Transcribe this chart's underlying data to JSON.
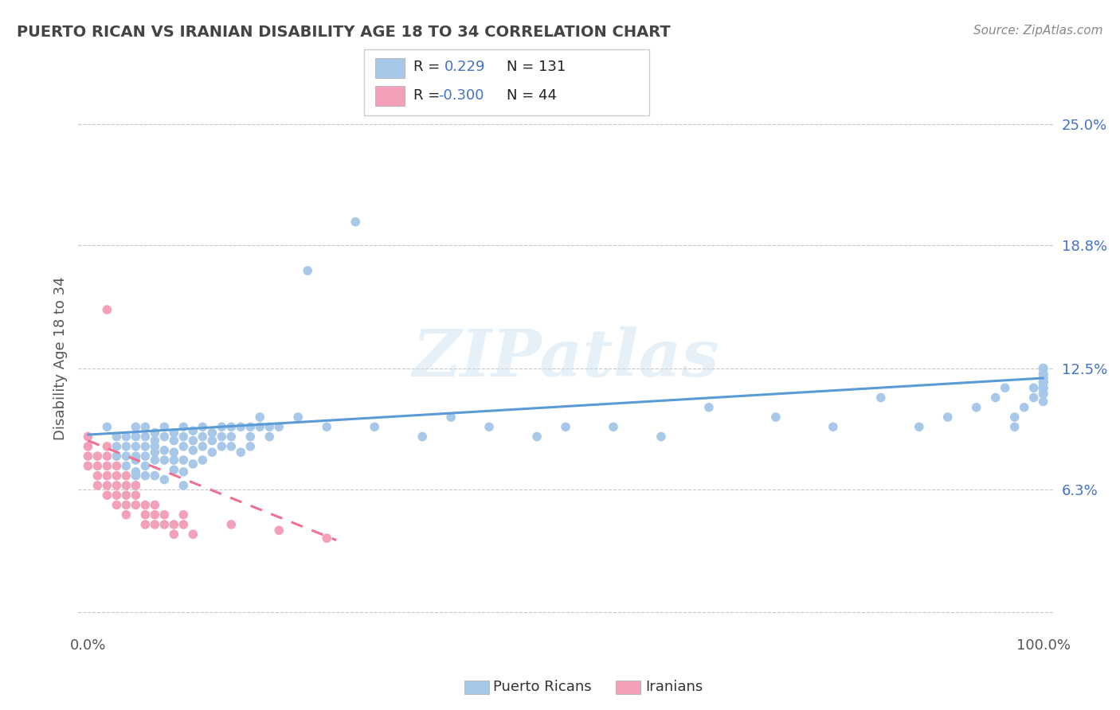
{
  "title": "PUERTO RICAN VS IRANIAN DISABILITY AGE 18 TO 34 CORRELATION CHART",
  "source": "Source: ZipAtlas.com",
  "ylabel": "Disability Age 18 to 34",
  "xlim": [
    -0.01,
    1.01
  ],
  "ylim": [
    -0.01,
    0.27
  ],
  "ytick_vals": [
    0.0,
    0.063,
    0.125,
    0.188,
    0.25
  ],
  "ytick_labels": [
    "",
    "6.3%",
    "12.5%",
    "18.8%",
    "25.0%"
  ],
  "xtick_vals": [
    0.0,
    1.0
  ],
  "xtick_labels": [
    "0.0%",
    "100.0%"
  ],
  "blue_color": "#a8c8ea",
  "pink_color": "#f4a0b8",
  "blue_line_color": "#5b9bd5",
  "pink_line_color": "#f07090",
  "r_text_color": "#4472c4",
  "watermark": "ZIPatlas",
  "blue_trend_x": [
    0.0,
    1.0
  ],
  "blue_trend_y": [
    0.091,
    0.12
  ],
  "pink_trend_x": [
    0.0,
    0.26
  ],
  "pink_trend_y": [
    0.088,
    0.037
  ],
  "blue_x": [
    0.02,
    0.03,
    0.03,
    0.03,
    0.04,
    0.04,
    0.04,
    0.04,
    0.05,
    0.05,
    0.05,
    0.05,
    0.05,
    0.05,
    0.05,
    0.05,
    0.06,
    0.06,
    0.06,
    0.06,
    0.06,
    0.06,
    0.07,
    0.07,
    0.07,
    0.07,
    0.07,
    0.07,
    0.08,
    0.08,
    0.08,
    0.08,
    0.08,
    0.09,
    0.09,
    0.09,
    0.09,
    0.09,
    0.1,
    0.1,
    0.1,
    0.1,
    0.1,
    0.1,
    0.11,
    0.11,
    0.11,
    0.11,
    0.12,
    0.12,
    0.12,
    0.12,
    0.13,
    0.13,
    0.13,
    0.14,
    0.14,
    0.14,
    0.15,
    0.15,
    0.15,
    0.16,
    0.16,
    0.17,
    0.17,
    0.17,
    0.18,
    0.18,
    0.19,
    0.19,
    0.2,
    0.22,
    0.23,
    0.25,
    0.28,
    0.3,
    0.35,
    0.38,
    0.42,
    0.47,
    0.5,
    0.55,
    0.6,
    0.65,
    0.72,
    0.78,
    0.83,
    0.87,
    0.9,
    0.93,
    0.95,
    0.96,
    0.97,
    0.97,
    0.98,
    0.99,
    0.99,
    1.0,
    1.0,
    1.0,
    1.0,
    1.0,
    1.0,
    1.0,
    1.0,
    1.0,
    1.0,
    1.0,
    1.0,
    1.0,
    1.0,
    1.0,
    1.0,
    1.0,
    1.0,
    1.0,
    1.0,
    1.0,
    1.0,
    1.0,
    1.0,
    1.0,
    1.0,
    1.0,
    1.0,
    1.0,
    1.0,
    1.0,
    1.0,
    1.0,
    1.0
  ],
  "blue_y": [
    0.095,
    0.09,
    0.085,
    0.08,
    0.085,
    0.08,
    0.075,
    0.09,
    0.078,
    0.072,
    0.085,
    0.09,
    0.08,
    0.095,
    0.07,
    0.065,
    0.085,
    0.08,
    0.09,
    0.095,
    0.075,
    0.07,
    0.082,
    0.088,
    0.078,
    0.092,
    0.085,
    0.07,
    0.083,
    0.078,
    0.09,
    0.095,
    0.068,
    0.088,
    0.082,
    0.092,
    0.078,
    0.073,
    0.085,
    0.09,
    0.095,
    0.078,
    0.072,
    0.065,
    0.088,
    0.083,
    0.093,
    0.076,
    0.09,
    0.085,
    0.095,
    0.078,
    0.088,
    0.082,
    0.092,
    0.09,
    0.085,
    0.095,
    0.095,
    0.09,
    0.085,
    0.095,
    0.082,
    0.095,
    0.09,
    0.085,
    0.1,
    0.095,
    0.095,
    0.09,
    0.095,
    0.1,
    0.175,
    0.095,
    0.2,
    0.095,
    0.09,
    0.1,
    0.095,
    0.09,
    0.095,
    0.095,
    0.09,
    0.105,
    0.1,
    0.095,
    0.11,
    0.095,
    0.1,
    0.105,
    0.11,
    0.115,
    0.095,
    0.1,
    0.105,
    0.11,
    0.115,
    0.12,
    0.125,
    0.12,
    0.115,
    0.12,
    0.125,
    0.12,
    0.125,
    0.118,
    0.115,
    0.122,
    0.118,
    0.112,
    0.108,
    0.118,
    0.125,
    0.122,
    0.118,
    0.115,
    0.112,
    0.12,
    0.118,
    0.115,
    0.112,
    0.118,
    0.122,
    0.115,
    0.118,
    0.112,
    0.12,
    0.118,
    0.115,
    0.122,
    0.118
  ],
  "pink_x": [
    0.0,
    0.0,
    0.0,
    0.0,
    0.01,
    0.01,
    0.01,
    0.01,
    0.02,
    0.02,
    0.02,
    0.02,
    0.02,
    0.02,
    0.02,
    0.03,
    0.03,
    0.03,
    0.03,
    0.03,
    0.04,
    0.04,
    0.04,
    0.04,
    0.04,
    0.05,
    0.05,
    0.05,
    0.06,
    0.06,
    0.06,
    0.07,
    0.07,
    0.07,
    0.08,
    0.08,
    0.09,
    0.09,
    0.1,
    0.1,
    0.11,
    0.15,
    0.2,
    0.25
  ],
  "pink_y": [
    0.085,
    0.09,
    0.075,
    0.08,
    0.08,
    0.075,
    0.07,
    0.065,
    0.08,
    0.075,
    0.085,
    0.065,
    0.07,
    0.06,
    0.155,
    0.075,
    0.07,
    0.065,
    0.06,
    0.055,
    0.07,
    0.065,
    0.06,
    0.055,
    0.05,
    0.06,
    0.055,
    0.065,
    0.055,
    0.05,
    0.045,
    0.055,
    0.05,
    0.045,
    0.05,
    0.045,
    0.045,
    0.04,
    0.05,
    0.045,
    0.04,
    0.045,
    0.042,
    0.038
  ]
}
